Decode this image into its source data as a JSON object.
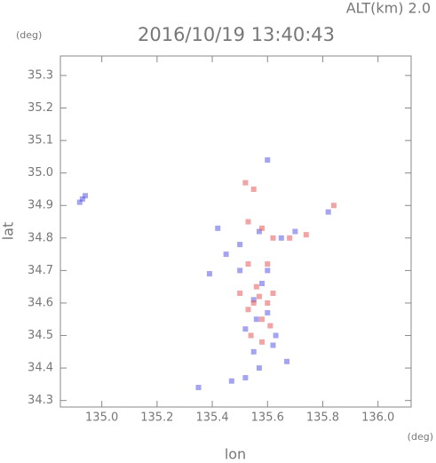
{
  "chart_data": {
    "type": "scatter",
    "title": "2016/10/19 13:40:43",
    "subtitle": "ALT(km) 2.0",
    "x_label": "lon",
    "y_label": "lat",
    "x_unit": "(deg)",
    "y_unit": "(deg)",
    "xlim": [
      134.85,
      136.12
    ],
    "ylim": [
      34.28,
      35.36
    ],
    "xticks": [
      {
        "value": 135,
        "label": "135.0"
      },
      135.2,
      135.4,
      135.6,
      135.8,
      {
        "value": 136,
        "label": "136.0"
      }
    ],
    "yticks": [
      34.3,
      34.4,
      34.5,
      34.6,
      34.7,
      34.8,
      34.9,
      {
        "value": 35,
        "label": "35.0"
      },
      35.1,
      35.2,
      35.3
    ],
    "series": [
      {
        "color": "#5a5ae6",
        "x": [
          134.93,
          134.94,
          134.92,
          135.35,
          135.45,
          135.42,
          135.39,
          135.5,
          135.55,
          135.52,
          135.58,
          135.6,
          135.63,
          135.55,
          135.67,
          135.47,
          135.52,
          135.65,
          135.7,
          135.57,
          135.82,
          135.6,
          135.5,
          135.6,
          135.56,
          135.62,
          135.57
        ],
        "y": [
          34.92,
          34.93,
          34.91,
          34.34,
          34.75,
          34.83,
          34.69,
          34.78,
          34.61,
          34.52,
          34.66,
          34.57,
          34.5,
          34.45,
          34.42,
          34.36,
          34.37,
          34.8,
          34.82,
          34.82,
          34.88,
          35.04,
          34.7,
          34.7,
          34.55,
          34.47,
          34.4
        ]
      },
      {
        "color": "#e65a5a",
        "x": [
          135.52,
          135.55,
          135.53,
          135.58,
          135.62,
          135.68,
          135.74,
          135.55,
          135.57,
          135.53,
          135.6,
          135.58,
          135.56,
          135.62,
          135.54,
          135.58,
          135.61,
          135.84,
          135.5,
          135.6,
          135.53
        ],
        "y": [
          34.97,
          34.95,
          34.85,
          34.83,
          34.8,
          34.8,
          34.81,
          34.6,
          34.62,
          34.58,
          34.6,
          34.55,
          34.65,
          34.63,
          34.5,
          34.48,
          34.53,
          34.9,
          34.63,
          34.72,
          34.72
        ]
      }
    ]
  }
}
